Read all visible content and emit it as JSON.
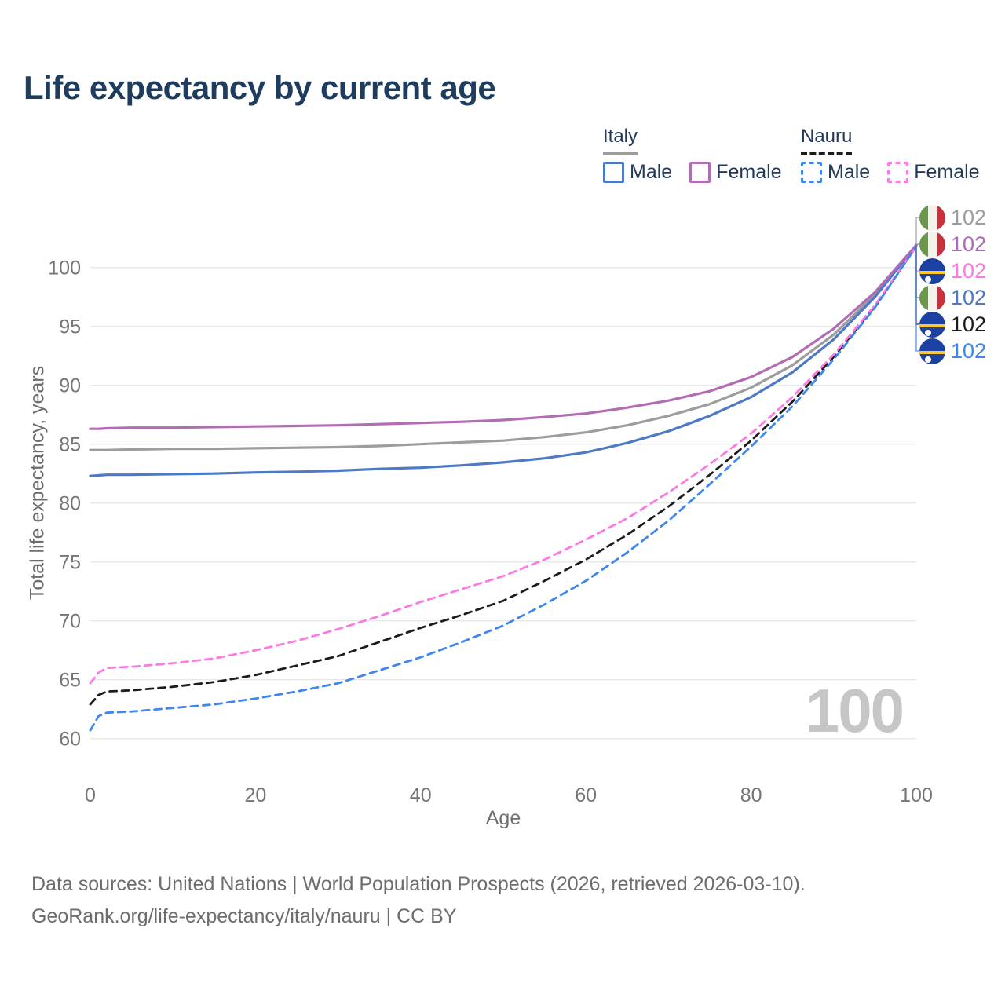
{
  "title": "Life expectancy by current age",
  "colors": {
    "title_text": "#1e3c5e",
    "legend_text": "#22395a",
    "axis_text": "#757575",
    "axis_title_text": "#6d6d6d",
    "gridline": "#e8e8e8",
    "watermark_text": "#c6c6c6",
    "italy_male": "#4e79c5",
    "italy_female": "#b16cb3",
    "italy_both": "#9d9d9d",
    "nauru_male": "#3e86f0",
    "nauru_female": "#fd79e3",
    "nauru_both": "#1c1c1c"
  },
  "legend": {
    "groups": [
      {
        "label": "Italy",
        "line_style": "solid",
        "underline_color": "#9d9d9d",
        "items": [
          {
            "label": "Male",
            "color": "#4e79c5",
            "dashed": false
          },
          {
            "label": "Female",
            "color": "#b16cb3",
            "dashed": false
          }
        ]
      },
      {
        "label": "Nauru",
        "line_style": "dashed",
        "underline_color": "#1c1c1c",
        "items": [
          {
            "label": "Male",
            "color": "#3e86f0",
            "dashed": true
          },
          {
            "label": "Female",
            "color": "#fd79e3",
            "dashed": true
          }
        ]
      }
    ]
  },
  "chart_data": {
    "type": "line",
    "title": "Life expectancy by current age",
    "xlabel": "Age",
    "ylabel": "Total life expectancy, years",
    "xlim": [
      0,
      100
    ],
    "ylim": [
      58,
      103
    ],
    "x_ticks": [
      0,
      20,
      40,
      60,
      80,
      100
    ],
    "y_ticks": [
      60,
      65,
      70,
      75,
      80,
      85,
      90,
      95,
      100
    ],
    "grid": "horizontal-only",
    "legend_position": "top-right",
    "hover_current_age": "100",
    "x": [
      0,
      1,
      2,
      5,
      10,
      15,
      20,
      25,
      30,
      35,
      40,
      45,
      50,
      55,
      60,
      65,
      70,
      75,
      80,
      85,
      90,
      95,
      100
    ],
    "series": [
      {
        "key": "italy-all",
        "name": "Italy (both sexes)",
        "country": "Italy",
        "sex": "both",
        "color": "#9d9d9d",
        "dashed": false,
        "end_value_label": "102",
        "values": [
          84.5,
          84.5,
          84.5,
          84.55,
          84.6,
          84.6,
          84.65,
          84.7,
          84.75,
          84.85,
          85.0,
          85.15,
          85.3,
          85.6,
          86.0,
          86.6,
          87.4,
          88.4,
          89.8,
          91.7,
          94.3,
          97.7,
          101.9
        ]
      },
      {
        "key": "italy-male",
        "name": "Italy Male",
        "country": "Italy",
        "sex": "male",
        "color": "#4e79c5",
        "dashed": false,
        "end_value_label": "102",
        "values": [
          82.3,
          82.35,
          82.4,
          82.4,
          82.45,
          82.5,
          82.6,
          82.65,
          82.75,
          82.9,
          83.0,
          83.2,
          83.45,
          83.8,
          84.3,
          85.1,
          86.1,
          87.4,
          89.0,
          91.1,
          93.9,
          97.5,
          101.9
        ]
      },
      {
        "key": "italy-female",
        "name": "Italy Female",
        "country": "Italy",
        "sex": "female",
        "color": "#b16cb3",
        "dashed": false,
        "end_value_label": "102",
        "values": [
          86.3,
          86.3,
          86.35,
          86.4,
          86.4,
          86.45,
          86.5,
          86.55,
          86.6,
          86.7,
          86.8,
          86.9,
          87.05,
          87.3,
          87.6,
          88.1,
          88.7,
          89.5,
          90.7,
          92.4,
          94.8,
          97.9,
          101.9
        ]
      },
      {
        "key": "nauru-all",
        "name": "Nauru (both sexes)",
        "country": "Nauru",
        "sex": "both",
        "color": "#1c1c1c",
        "dashed": true,
        "end_value_label": "102",
        "values": [
          62.9,
          63.7,
          64.0,
          64.1,
          64.4,
          64.8,
          65.4,
          66.2,
          67.0,
          68.2,
          69.4,
          70.5,
          71.7,
          73.4,
          75.2,
          77.3,
          79.7,
          82.4,
          85.3,
          88.6,
          92.4,
          96.7,
          101.8
        ]
      },
      {
        "key": "nauru-female",
        "name": "Nauru Female",
        "country": "Nauru",
        "sex": "female",
        "color": "#fd79e3",
        "dashed": true,
        "end_value_label": "102",
        "values": [
          64.7,
          65.6,
          66.0,
          66.1,
          66.4,
          66.8,
          67.5,
          68.3,
          69.3,
          70.4,
          71.6,
          72.7,
          73.8,
          75.2,
          76.9,
          78.7,
          80.9,
          83.3,
          85.9,
          89.0,
          92.6,
          96.8,
          101.8
        ]
      },
      {
        "key": "nauru-male",
        "name": "Nauru Male",
        "country": "Nauru",
        "sex": "male",
        "color": "#3e86f0",
        "dashed": true,
        "end_value_label": "102",
        "values": [
          60.7,
          61.9,
          62.2,
          62.3,
          62.6,
          62.9,
          63.4,
          64.0,
          64.7,
          65.8,
          66.9,
          68.2,
          69.6,
          71.4,
          73.4,
          75.8,
          78.5,
          81.6,
          84.8,
          88.2,
          92.2,
          96.6,
          101.8
        ]
      }
    ]
  },
  "end_labels": [
    {
      "series": "italy-all",
      "flag": "italy",
      "value": "102",
      "color": "#9d9d9d"
    },
    {
      "series": "italy-female",
      "flag": "italy",
      "value": "102",
      "color": "#a76db6"
    },
    {
      "series": "nauru-female",
      "flag": "nauru",
      "value": "102",
      "color": "#fd79e3"
    },
    {
      "series": "italy-male",
      "flag": "italy",
      "value": "102",
      "color": "#4e79c5"
    },
    {
      "series": "nauru-all",
      "flag": "nauru",
      "value": "102",
      "color": "#1c1c1c"
    },
    {
      "series": "nauru-male",
      "flag": "nauru",
      "value": "102",
      "color": "#3e86f0"
    }
  ],
  "footer": {
    "line1": "Data sources: United Nations | World Population Prospects (2026, retrieved 2026-03-10).",
    "line2": "GeoRank.org/life-expectancy/italy/nauru | CC BY"
  }
}
